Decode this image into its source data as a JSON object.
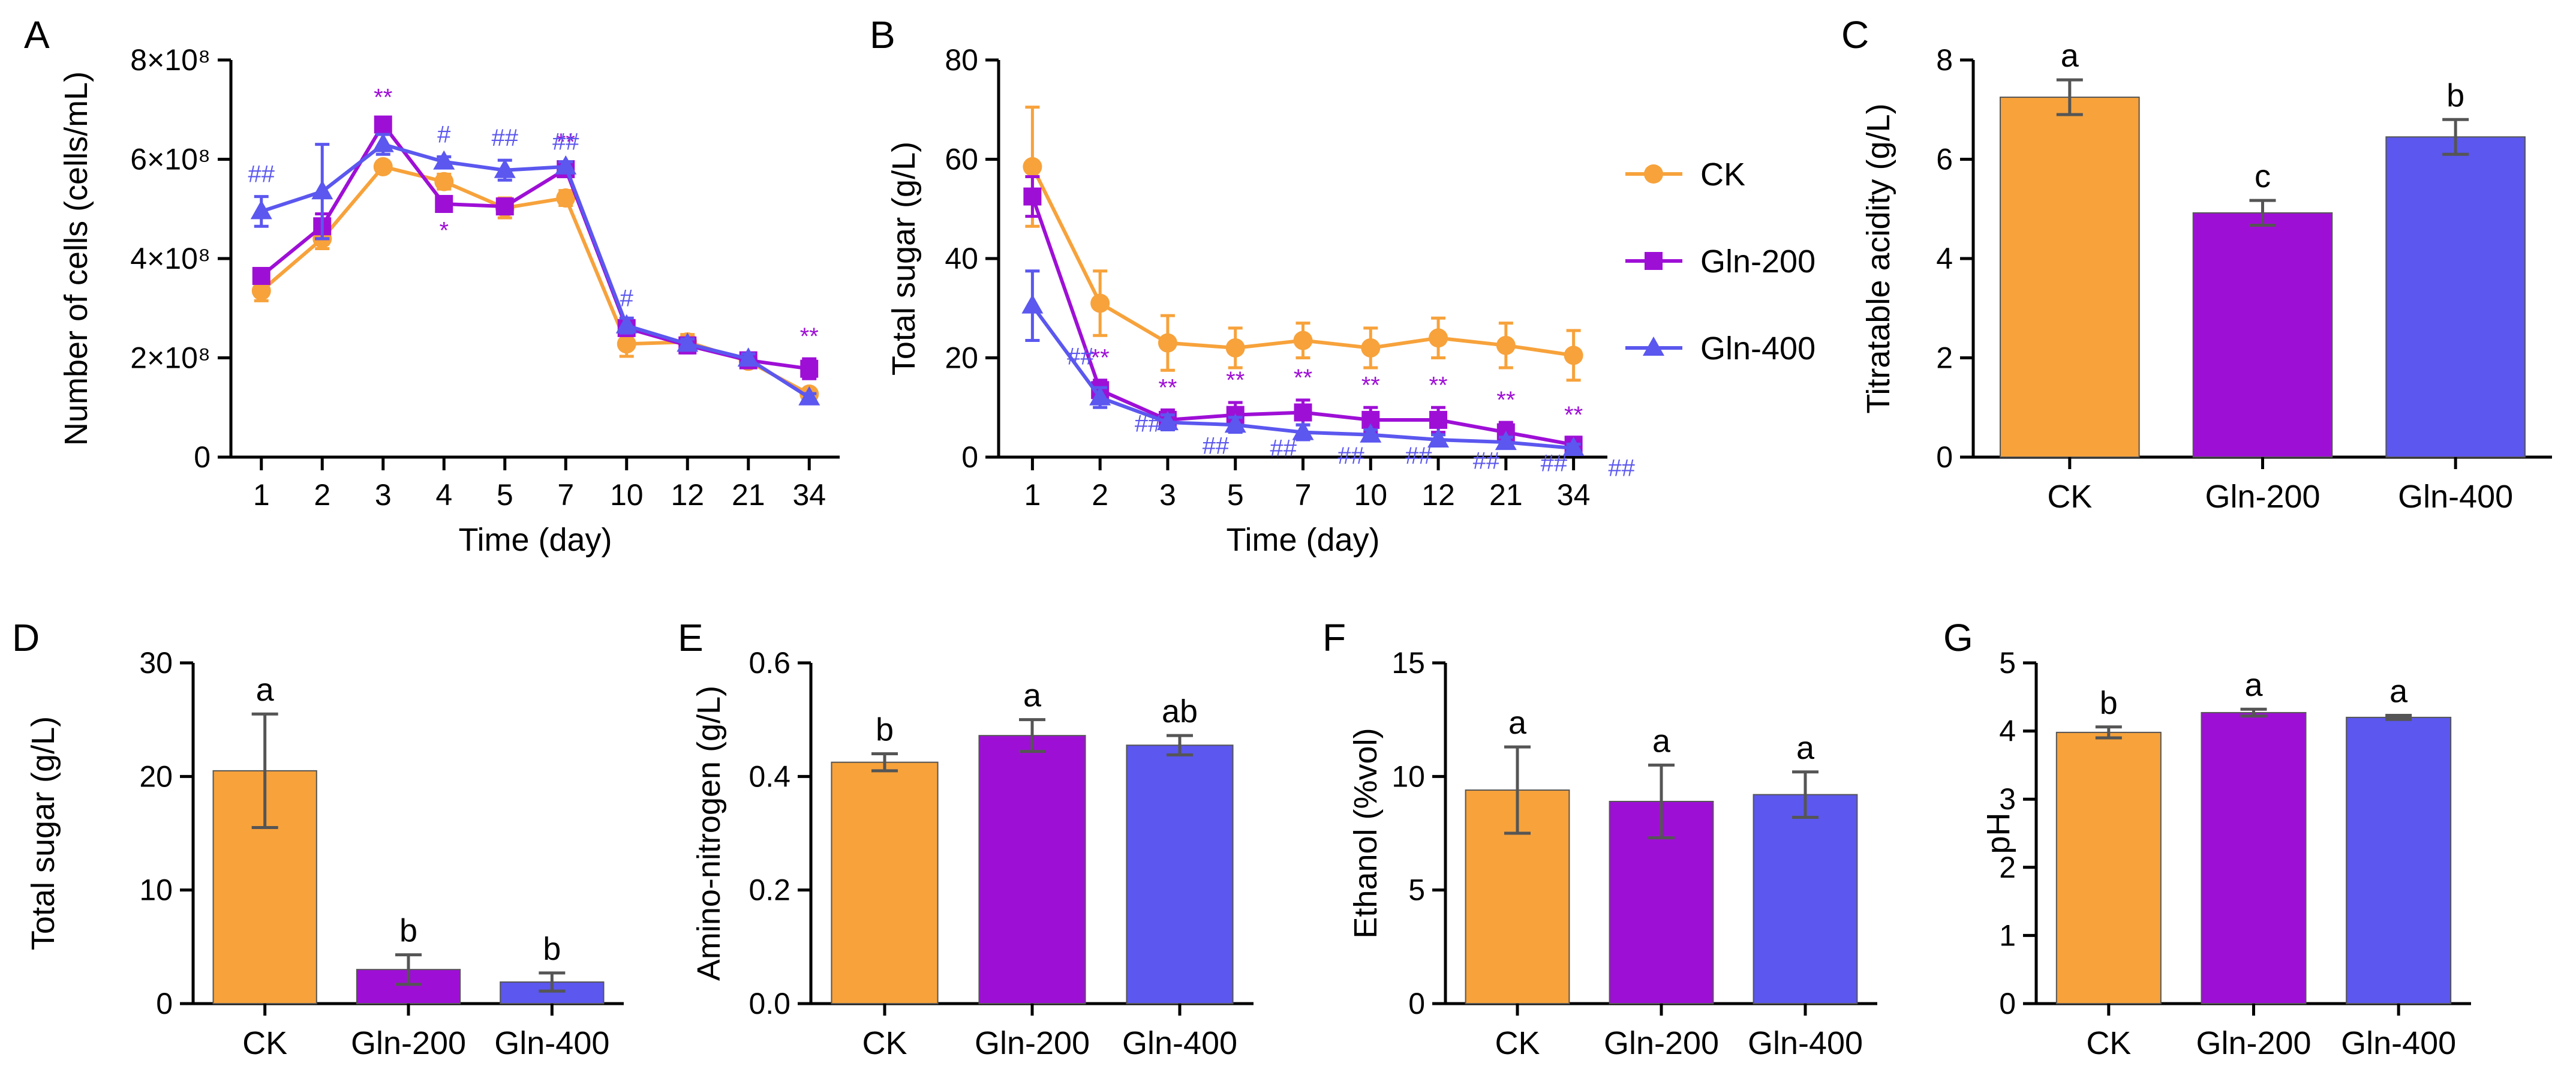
{
  "chart_data": [
    {
      "panel": "A",
      "type": "line",
      "ylabel": "Number of cells (cells/mL)",
      "xlabel": "Time (day)",
      "categories": [
        "1",
        "2",
        "3",
        "4",
        "5",
        "7",
        "10",
        "12",
        "21",
        "34"
      ],
      "ylim": [
        0,
        800000000
      ],
      "yticks": [
        "0",
        "2×10⁸",
        "4×10⁸",
        "6×10⁸",
        "8×10⁸"
      ],
      "series": [
        {
          "name": "CK",
          "color": "#F7A23B",
          "marker": "circle",
          "values": [
            335000000,
            440000000,
            585000000,
            555000000,
            502000000,
            522000000,
            228000000,
            232000000,
            193000000,
            127000000
          ],
          "errors": [
            20000000,
            20000000,
            10000000,
            15000000,
            20000000,
            15000000,
            25000000,
            15000000,
            10000000,
            8000000
          ]
        },
        {
          "name": "Gln-200",
          "color": "#9E0FD6",
          "marker": "square",
          "values": [
            365000000,
            465000000,
            670000000,
            510000000,
            505000000,
            580000000,
            260000000,
            225000000,
            195000000,
            178000000
          ],
          "errors": [
            10000000,
            25000000,
            10000000,
            15000000,
            15000000,
            10000000,
            15000000,
            15000000,
            10000000,
            20000000
          ],
          "annotations": [
            "",
            "",
            "**",
            "*",
            "",
            "**",
            "",
            "",
            "",
            "**"
          ]
        },
        {
          "name": "Gln-400",
          "color": "#5B57EF",
          "marker": "triangle",
          "values": [
            495000000,
            535000000,
            630000000,
            595000000,
            578000000,
            585000000,
            265000000,
            228000000,
            198000000,
            120000000
          ],
          "errors": [
            30000000,
            95000000,
            20000000,
            10000000,
            20000000,
            10000000,
            15000000,
            10000000,
            10000000,
            8000000
          ],
          "annotations": [
            "##",
            "",
            "",
            "#",
            "##",
            "##",
            "#",
            "",
            "",
            ""
          ]
        }
      ]
    },
    {
      "panel": "B",
      "type": "line",
      "ylabel": "Total sugar (g/L)",
      "xlabel": "Time (day)",
      "categories": [
        "1",
        "2",
        "3",
        "5",
        "7",
        "10",
        "12",
        "21",
        "34"
      ],
      "ylim": [
        0,
        80
      ],
      "yticks": [
        "0",
        "20",
        "40",
        "60",
        "80"
      ],
      "series": [
        {
          "name": "CK",
          "color": "#F7A23B",
          "marker": "circle",
          "values": [
            58.5,
            31,
            23,
            22,
            23.5,
            22,
            24,
            22.5,
            20.5
          ],
          "errors": [
            12,
            6.5,
            5.5,
            4,
            3.5,
            4,
            4,
            4.5,
            5
          ]
        },
        {
          "name": "Gln-200",
          "color": "#9E0FD6",
          "marker": "square",
          "values": [
            52.5,
            13.5,
            7.5,
            8.5,
            9,
            7.5,
            7.5,
            5,
            2.5
          ],
          "errors": [
            4,
            2,
            2,
            2.5,
            2.5,
            2.5,
            2.5,
            2,
            1.5
          ],
          "annotations": [
            "",
            "**",
            "**",
            "**",
            "**",
            "**",
            "**",
            "**",
            "**"
          ]
        },
        {
          "name": "Gln-400",
          "color": "#5B57EF",
          "marker": "triangle",
          "values": [
            30.5,
            12,
            7,
            6.5,
            5,
            4.5,
            3.5,
            3,
            1.8
          ],
          "errors": [
            7,
            2,
            1.5,
            1.5,
            1.5,
            1,
            1,
            1,
            0.8
          ],
          "annotations": [
            "##",
            "##",
            "##",
            "##",
            "##",
            "##",
            "##",
            "##",
            "##"
          ]
        }
      ]
    },
    {
      "panel": "C",
      "type": "bar",
      "ylabel": "Titratable acidity (g/L)",
      "categories": [
        "CK",
        "Gln-200",
        "Gln-400"
      ],
      "values": [
        7.25,
        4.92,
        6.45
      ],
      "errors": [
        0.35,
        0.25,
        0.35
      ],
      "labels": [
        "a",
        "c",
        "b"
      ],
      "colors": [
        "#F7A23B",
        "#9E0FD6",
        "#5B57EF"
      ],
      "ylim": [
        0,
        8
      ],
      "yticks": [
        "0",
        "2",
        "4",
        "6",
        "8"
      ]
    },
    {
      "panel": "D",
      "type": "bar",
      "ylabel": "Total sugar (g/L)",
      "categories": [
        "CK",
        "Gln-200",
        "Gln-400"
      ],
      "values": [
        20.5,
        3,
        1.9
      ],
      "errors": [
        5,
        1.3,
        0.8
      ],
      "labels": [
        "a",
        "b",
        "b"
      ],
      "colors": [
        "#F7A23B",
        "#9E0FD6",
        "#5B57EF"
      ],
      "ylim": [
        0,
        30
      ],
      "yticks": [
        "0",
        "10",
        "20",
        "30"
      ]
    },
    {
      "panel": "E",
      "type": "bar",
      "ylabel": "Amino-nitrogen (g/L)",
      "categories": [
        "CK",
        "Gln-200",
        "Gln-400"
      ],
      "values": [
        0.425,
        0.472,
        0.455
      ],
      "errors": [
        0.015,
        0.028,
        0.017
      ],
      "labels": [
        "b",
        "a",
        "ab"
      ],
      "colors": [
        "#F7A23B",
        "#9E0FD6",
        "#5B57EF"
      ],
      "ylim": [
        0,
        0.6
      ],
      "yticks": [
        "0.0",
        "0.2",
        "0.4",
        "0.6"
      ]
    },
    {
      "panel": "F",
      "type": "bar",
      "ylabel": "Ethanol (%vol)",
      "categories": [
        "CK",
        "Gln-200",
        "Gln-400"
      ],
      "values": [
        9.4,
        8.9,
        9.2
      ],
      "errors": [
        1.9,
        1.6,
        1.0
      ],
      "labels": [
        "a",
        "a",
        "a"
      ],
      "colors": [
        "#F7A23B",
        "#9E0FD6",
        "#5B57EF"
      ],
      "ylim": [
        0,
        15
      ],
      "yticks": [
        "0",
        "5",
        "10",
        "15"
      ]
    },
    {
      "panel": "G",
      "type": "bar",
      "ylabel": "pH",
      "categories": [
        "CK",
        "Gln-200",
        "Gln-400"
      ],
      "values": [
        3.98,
        4.27,
        4.2
      ],
      "errors": [
        0.08,
        0.05,
        0.03
      ],
      "labels": [
        "b",
        "a",
        "a"
      ],
      "colors": [
        "#F7A23B",
        "#9E0FD6",
        "#5B57EF"
      ],
      "ylim": [
        0,
        5
      ],
      "yticks": [
        "0",
        "1",
        "2",
        "3",
        "4",
        "5"
      ]
    }
  ],
  "legend": [
    {
      "name": "CK",
      "color": "#F7A23B",
      "marker": "circle"
    },
    {
      "name": "Gln-200",
      "color": "#9E0FD6",
      "marker": "square"
    },
    {
      "name": "Gln-400",
      "color": "#5B57EF",
      "marker": "triangle"
    }
  ]
}
